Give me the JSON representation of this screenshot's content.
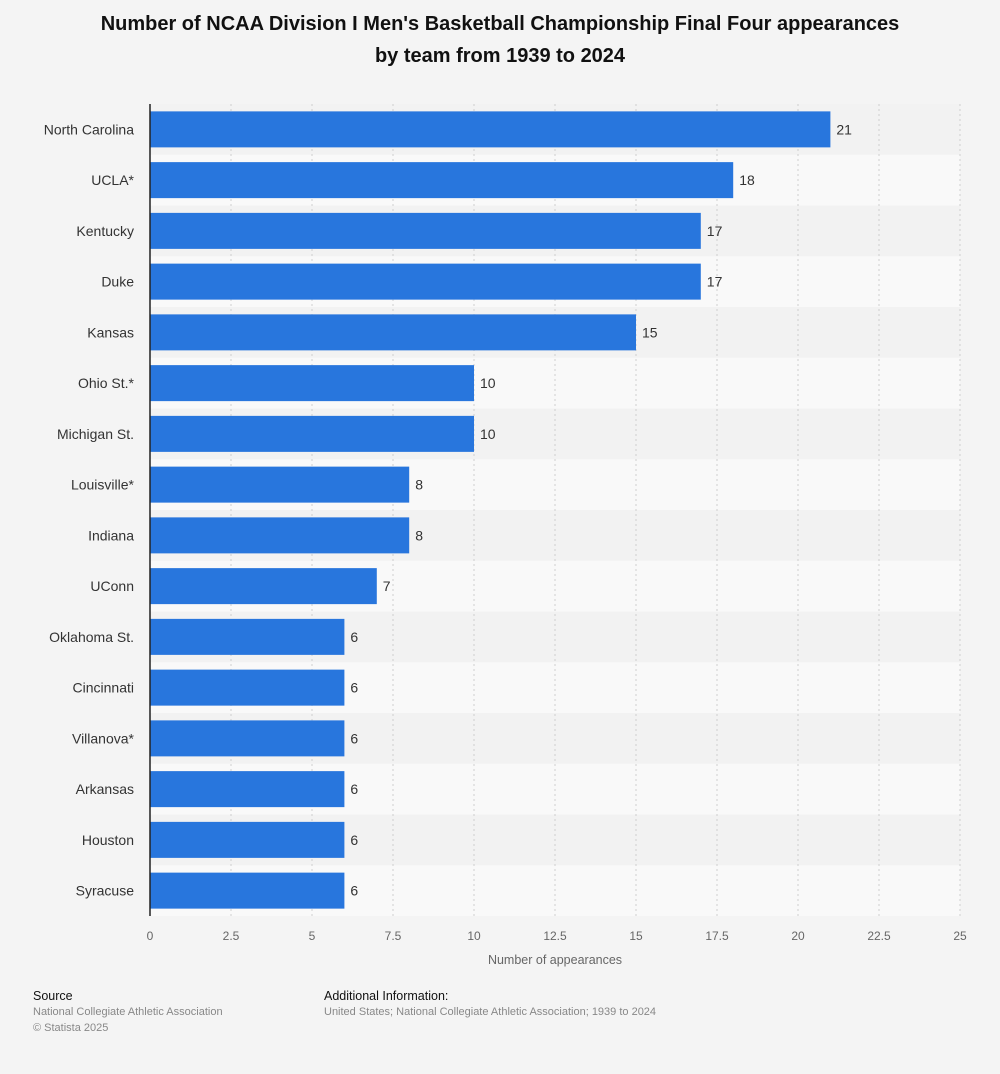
{
  "chart_data": {
    "type": "bar",
    "orientation": "horizontal",
    "title": "Number of NCAA Division I Men's Basketball Championship Final Four appearances by team from 1939 to 2024",
    "title_lines": [
      "Number of NCAA Division I Men's Basketball Championship Final Four appearances",
      "by team from 1939 to 2024"
    ],
    "categories": [
      "North Carolina",
      "UCLA*",
      "Kentucky",
      "Duke",
      "Kansas",
      "Ohio St.*",
      "Michigan St.",
      "Louisville*",
      "Indiana",
      "UConn",
      "Oklahoma St.",
      "Cincinnati",
      "Villanova*",
      "Arkansas",
      "Houston",
      "Syracuse"
    ],
    "values": [
      21,
      18,
      17,
      17,
      15,
      10,
      10,
      8,
      8,
      7,
      6,
      6,
      6,
      6,
      6,
      6
    ],
    "xlabel": "Number of appearances",
    "ylabel": "",
    "xlim": [
      0,
      25
    ],
    "ticks": [
      0,
      2.5,
      5,
      7.5,
      10,
      12.5,
      15,
      17.5,
      20,
      22.5,
      25
    ],
    "tick_labels": [
      "0",
      "2.5",
      "5",
      "7.5",
      "10",
      "12.5",
      "15",
      "17.5",
      "20",
      "22.5",
      "25"
    ],
    "grid": true,
    "bar_color": "#2876dd"
  },
  "footer": {
    "source_heading": "Source",
    "source_lines": [
      "National Collegiate Athletic Association",
      "© Statista 2025"
    ],
    "info_heading": "Additional Information:",
    "info_text": "United States; National Collegiate Athletic Association; 1939 to 2024"
  }
}
